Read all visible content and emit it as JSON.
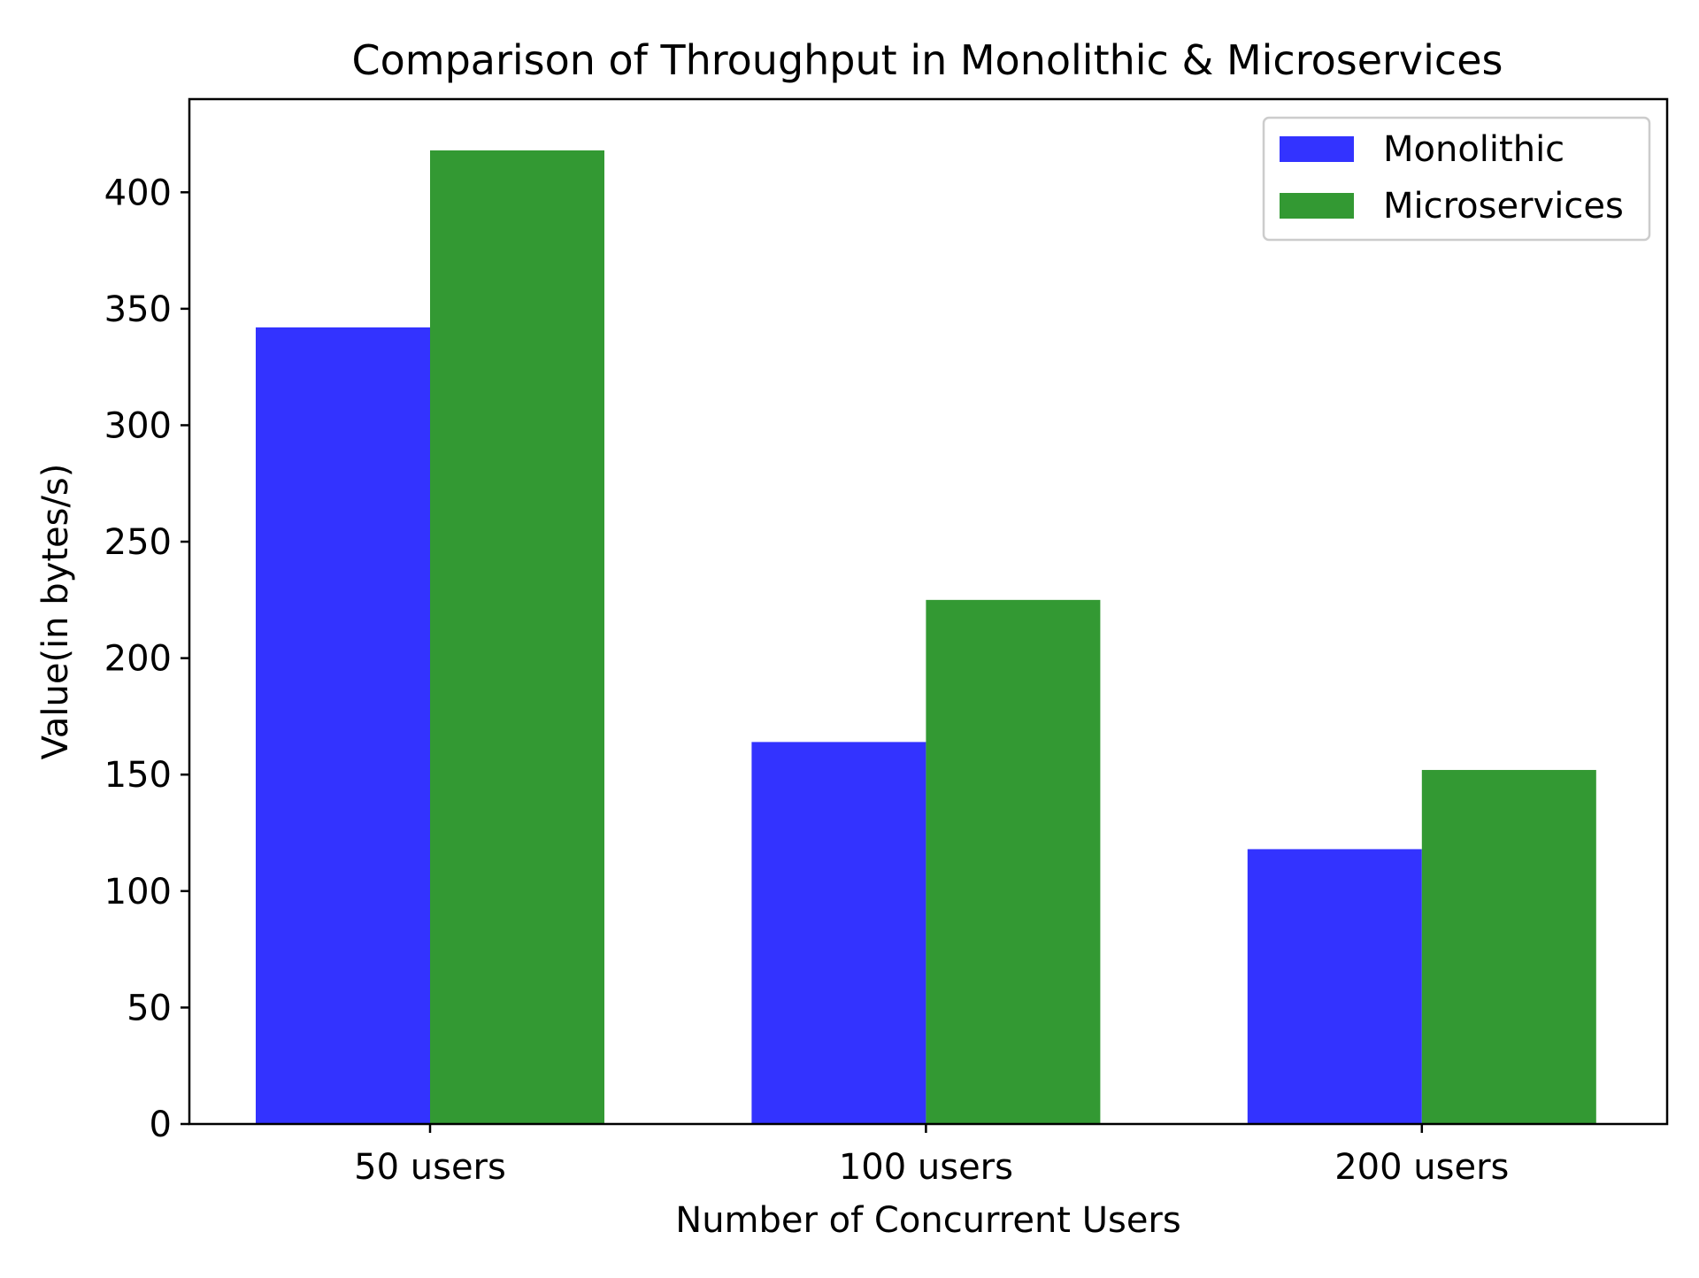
{
  "chart_data": {
    "type": "bar",
    "title": "Comparison of Throughput in Monolithic & Microservices",
    "xlabel": "Number of Concurrent Users",
    "ylabel": "Value(in bytes/s)",
    "categories": [
      "50 users",
      "100 users",
      "200 users"
    ],
    "series": [
      {
        "name": "Monolithic",
        "color": "#3333ff",
        "values": [
          342,
          164,
          118
        ]
      },
      {
        "name": "Microservices",
        "color": "#339933",
        "values": [
          418,
          225,
          152
        ]
      }
    ],
    "ylim": [
      0,
      440
    ],
    "yticks": [
      0,
      50,
      100,
      150,
      200,
      250,
      300,
      350,
      400
    ],
    "grid": false,
    "legend_position": "top-right"
  }
}
